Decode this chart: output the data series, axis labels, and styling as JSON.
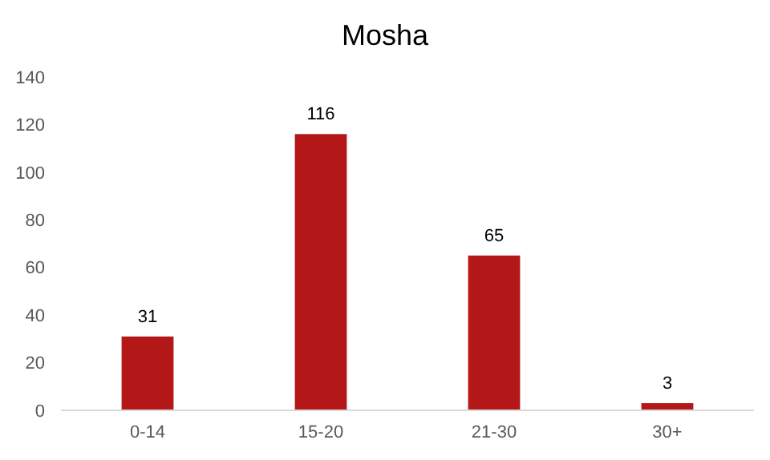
{
  "chart_data": {
    "type": "bar",
    "title": "Mosha",
    "categories": [
      "0-14",
      "15-20",
      "21-30",
      "30+"
    ],
    "values": [
      31,
      116,
      65,
      3
    ],
    "color": "#b31717",
    "ylim": [
      0,
      140
    ],
    "yticks": [
      0,
      20,
      40,
      60,
      80,
      100,
      120,
      140
    ],
    "data_labels": true
  }
}
